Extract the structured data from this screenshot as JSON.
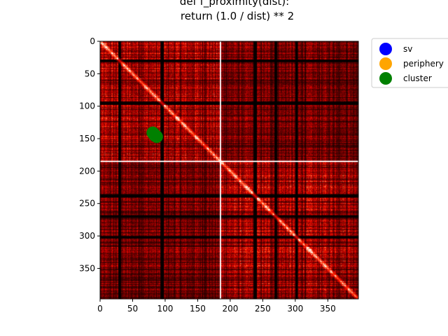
{
  "chart_data": {
    "type": "heatmap",
    "title_lines": [
      "def f_proximity(dist):",
      "return (1.0 / dist) ** 2"
    ],
    "xlabel": "",
    "ylabel": "",
    "matrix_size": 397,
    "xlim": [
      0,
      397
    ],
    "ylim": [
      397,
      0
    ],
    "x_ticks": [
      0,
      50,
      100,
      150,
      200,
      250,
      300,
      350
    ],
    "y_ticks": [
      0,
      50,
      100,
      150,
      200,
      250,
      300,
      350
    ],
    "block_split": 184,
    "colormap": [
      "#000000",
      "#3a0000",
      "#8a0000",
      "#d40000",
      "#ff2a00",
      "#ff8a5a",
      "#ffe4d8"
    ],
    "legend_position": "upper-right-outside",
    "legend": [
      {
        "label": "sv",
        "color": "#0000ff"
      },
      {
        "label": "periphery",
        "color": "#ffa500"
      },
      {
        "label": "cluster",
        "color": "#008000"
      }
    ],
    "points": [
      {
        "series": "cluster",
        "x": 81,
        "y": 141,
        "color": "#008000"
      },
      {
        "series": "cluster",
        "x": 83,
        "y": 143,
        "color": "#008000"
      },
      {
        "series": "cluster",
        "x": 84,
        "y": 145,
        "color": "#008000"
      },
      {
        "series": "cluster",
        "x": 86,
        "y": 146,
        "color": "#008000"
      },
      {
        "series": "cluster",
        "x": 87,
        "y": 147,
        "color": "#008000"
      }
    ]
  }
}
